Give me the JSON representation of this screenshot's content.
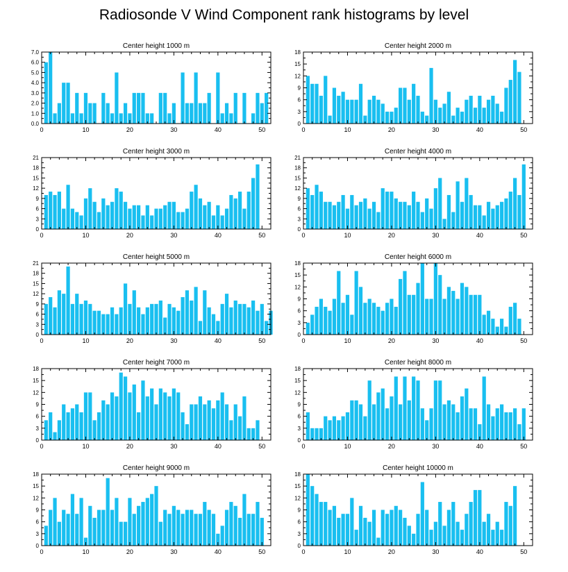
{
  "title": "Radiosonde V Wind Component rank histograms by level",
  "colors": {
    "bar": "#19bff0",
    "axis": "#000000"
  },
  "chart_data": [
    {
      "type": "bar",
      "title": "Center height 1000 m",
      "xlim": [
        0,
        52
      ],
      "xticks": [
        0,
        10,
        20,
        30,
        40,
        50
      ],
      "ylim": [
        0,
        7
      ],
      "yticks": [
        "0.0",
        "1.0",
        "2.0",
        "3.0",
        "4.0",
        "5.0",
        "6.0",
        "7.0"
      ],
      "ytick_values": [
        0,
        1,
        2,
        3,
        4,
        5,
        6,
        7
      ],
      "values": [
        6,
        7,
        1,
        2,
        4,
        4,
        1,
        3,
        1,
        3,
        2,
        2,
        0,
        3,
        2,
        1,
        5,
        1,
        2,
        1,
        3,
        3,
        3,
        1,
        1,
        0,
        3,
        3,
        1,
        2,
        0,
        5,
        2,
        2,
        5,
        2,
        2,
        3,
        0,
        5,
        1,
        2,
        1,
        3,
        0,
        3,
        0,
        1,
        3,
        2,
        3,
        0
      ]
    },
    {
      "type": "bar",
      "title": "Center height 2000 m",
      "xlim": [
        0,
        52
      ],
      "xticks": [
        0,
        10,
        20,
        30,
        40,
        50
      ],
      "ylim": [
        0,
        18
      ],
      "yticks": [
        "0",
        "3",
        "6",
        "9",
        "12",
        "15",
        "18"
      ],
      "ytick_values": [
        0,
        3,
        6,
        9,
        12,
        15,
        18
      ],
      "values": [
        12,
        10,
        10,
        7,
        12,
        2,
        9,
        7,
        8,
        6,
        6,
        6,
        10,
        2,
        6,
        7,
        6,
        5,
        3,
        3,
        4,
        9,
        9,
        6,
        10,
        7,
        3,
        2,
        14,
        6,
        4,
        5,
        8,
        2,
        4,
        3,
        6,
        7,
        4,
        7,
        4,
        6,
        7,
        5,
        3,
        9,
        11,
        16,
        13,
        0,
        0,
        0
      ]
    },
    {
      "type": "bar",
      "title": "Center height 3000 m",
      "xlim": [
        0,
        52
      ],
      "xticks": [
        0,
        10,
        20,
        30,
        40,
        50
      ],
      "ylim": [
        0,
        21
      ],
      "yticks": [
        "0",
        "3",
        "6",
        "9",
        "12",
        "15",
        "18",
        "21"
      ],
      "ytick_values": [
        0,
        3,
        6,
        9,
        12,
        15,
        18,
        21
      ],
      "values": [
        10,
        11,
        10,
        11,
        6,
        13,
        6,
        5,
        4,
        9,
        12,
        8,
        5,
        9,
        7,
        8,
        12,
        11,
        8,
        6,
        7,
        7,
        4,
        7,
        4,
        6,
        6,
        7,
        8,
        8,
        5,
        5,
        6,
        11,
        13,
        9,
        7,
        8,
        4,
        7,
        4,
        6,
        10,
        9,
        11,
        6,
        11,
        15,
        19,
        0,
        0,
        0
      ]
    },
    {
      "type": "bar",
      "title": "Center height 4000 m",
      "xlim": [
        0,
        52
      ],
      "xticks": [
        0,
        10,
        20,
        30,
        40,
        50
      ],
      "ylim": [
        0,
        21
      ],
      "yticks": [
        "0",
        "3",
        "6",
        "9",
        "12",
        "15",
        "18",
        "21"
      ],
      "ytick_values": [
        0,
        3,
        6,
        9,
        12,
        15,
        18,
        21
      ],
      "values": [
        12,
        10,
        13,
        11,
        8,
        8,
        7,
        8,
        10,
        6,
        10,
        7,
        8,
        9,
        6,
        8,
        5,
        12,
        11,
        11,
        9,
        8,
        8,
        7,
        11,
        8,
        5,
        9,
        6,
        12,
        15,
        3,
        10,
        5,
        14,
        8,
        15,
        10,
        7,
        7,
        4,
        8,
        6,
        7,
        8,
        9,
        11,
        15,
        10,
        19,
        0,
        0
      ]
    },
    {
      "type": "bar",
      "title": "Center height 5000 m",
      "xlim": [
        0,
        52
      ],
      "xticks": [
        0,
        10,
        20,
        30,
        40,
        50
      ],
      "ylim": [
        0,
        21
      ],
      "yticks": [
        "0",
        "3",
        "6",
        "9",
        "12",
        "15",
        "18",
        "21"
      ],
      "ytick_values": [
        0,
        3,
        6,
        9,
        12,
        15,
        18,
        21
      ],
      "values": [
        9,
        11,
        8,
        13,
        12,
        20,
        9,
        12,
        9,
        10,
        9,
        7,
        7,
        6,
        6,
        8,
        6,
        8,
        15,
        9,
        13,
        8,
        6,
        8,
        9,
        9,
        10,
        5,
        9,
        8,
        7,
        11,
        13,
        10,
        14,
        4,
        13,
        8,
        6,
        4,
        9,
        12,
        8,
        10,
        9,
        9,
        8,
        10,
        7,
        9,
        4,
        7
      ]
    },
    {
      "type": "bar",
      "title": "Center height 6000 m",
      "xlim": [
        0,
        52
      ],
      "xticks": [
        0,
        10,
        20,
        30,
        40,
        50
      ],
      "ylim": [
        0,
        18
      ],
      "yticks": [
        "0",
        "3",
        "6",
        "9",
        "12",
        "15",
        "18"
      ],
      "ytick_values": [
        0,
        3,
        6,
        9,
        12,
        15,
        18
      ],
      "values": [
        3,
        5,
        7,
        9,
        7,
        6,
        9,
        16,
        8,
        10,
        5,
        16,
        12,
        8,
        9,
        8,
        7,
        6,
        8,
        9,
        7,
        14,
        16,
        10,
        10,
        13,
        18,
        9,
        9,
        18,
        15,
        9,
        12,
        11,
        9,
        13,
        12,
        10,
        10,
        10,
        5,
        6,
        4,
        2,
        4,
        2,
        7,
        8,
        4,
        0,
        0,
        0
      ]
    },
    {
      "type": "bar",
      "title": "Center height 7000 m",
      "xlim": [
        0,
        52
      ],
      "xticks": [
        0,
        10,
        20,
        30,
        40,
        50
      ],
      "ylim": [
        0,
        18
      ],
      "yticks": [
        "0",
        "3",
        "6",
        "9",
        "12",
        "15",
        "18"
      ],
      "ytick_values": [
        0,
        3,
        6,
        9,
        12,
        15,
        18
      ],
      "values": [
        5,
        7,
        2,
        5,
        9,
        7,
        8,
        9,
        7,
        12,
        12,
        5,
        7,
        10,
        9,
        12,
        11,
        17,
        16,
        12,
        14,
        7,
        15,
        11,
        13,
        9,
        13,
        12,
        11,
        13,
        12,
        7,
        4,
        9,
        9,
        11,
        9,
        10,
        8,
        10,
        12,
        9,
        5,
        9,
        6,
        11,
        3,
        3,
        5,
        0,
        0,
        0
      ]
    },
    {
      "type": "bar",
      "title": "Center height 8000 m",
      "xlim": [
        0,
        52
      ],
      "xticks": [
        0,
        10,
        20,
        30,
        40,
        50
      ],
      "ylim": [
        0,
        18
      ],
      "yticks": [
        "0",
        "3",
        "6",
        "9",
        "12",
        "15",
        "18"
      ],
      "ytick_values": [
        0,
        3,
        6,
        9,
        12,
        15,
        18
      ],
      "values": [
        7,
        3,
        3,
        3,
        6,
        5,
        6,
        5,
        6,
        7,
        10,
        10,
        9,
        6,
        15,
        9,
        12,
        13,
        8,
        11,
        16,
        9,
        16,
        10,
        16,
        15,
        8,
        5,
        8,
        15,
        15,
        9,
        10,
        9,
        7,
        11,
        13,
        8,
        8,
        4,
        16,
        9,
        6,
        8,
        9,
        7,
        7,
        8,
        4,
        8,
        0,
        0
      ]
    },
    {
      "type": "bar",
      "title": "Center height 9000 m",
      "xlim": [
        0,
        52
      ],
      "xticks": [
        0,
        10,
        20,
        30,
        40,
        50
      ],
      "ylim": [
        0,
        18
      ],
      "yticks": [
        "0",
        "3",
        "6",
        "9",
        "12",
        "15",
        "18"
      ],
      "ytick_values": [
        0,
        3,
        6,
        9,
        12,
        15,
        18
      ],
      "values": [
        5,
        9,
        12,
        6,
        9,
        8,
        13,
        8,
        12,
        2,
        10,
        7,
        9,
        9,
        17,
        9,
        12,
        6,
        6,
        12,
        8,
        10,
        11,
        12,
        13,
        15,
        6,
        9,
        8,
        10,
        9,
        8,
        9,
        9,
        8,
        8,
        11,
        9,
        8,
        3,
        5,
        9,
        11,
        10,
        7,
        13,
        8,
        8,
        11,
        7,
        0,
        0
      ]
    },
    {
      "type": "bar",
      "title": "Center height 10000 m",
      "xlim": [
        0,
        52
      ],
      "xticks": [
        0,
        10,
        20,
        30,
        40,
        50
      ],
      "ylim": [
        0,
        18
      ],
      "yticks": [
        "0",
        "3",
        "6",
        "9",
        "12",
        "15",
        "18"
      ],
      "ytick_values": [
        0,
        3,
        6,
        9,
        12,
        15,
        18
      ],
      "values": [
        18,
        15,
        13,
        11,
        11,
        9,
        10,
        7,
        8,
        8,
        12,
        4,
        10,
        7,
        6,
        9,
        2,
        9,
        8,
        9,
        10,
        9,
        7,
        5,
        3,
        8,
        16,
        9,
        4,
        6,
        11,
        5,
        9,
        11,
        6,
        4,
        8,
        11,
        14,
        14,
        6,
        8,
        4,
        6,
        4,
        11,
        10,
        15,
        0,
        0,
        0,
        0
      ]
    }
  ]
}
